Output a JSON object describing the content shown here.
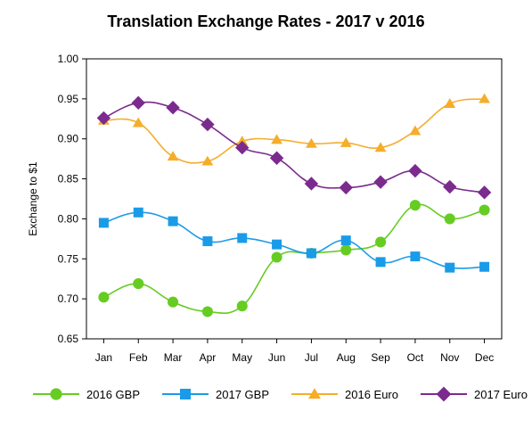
{
  "chart_data": {
    "type": "line",
    "title": "Translation Exchange Rates - 2017 v 2016",
    "xlabel": "",
    "ylabel": "Exchange to $1",
    "categories": [
      "Jan",
      "Feb",
      "Mar",
      "Apr",
      "May",
      "Jun",
      "Jul",
      "Aug",
      "Sep",
      "Oct",
      "Nov",
      "Dec"
    ],
    "ylim": [
      0.65,
      1.0
    ],
    "yticks": [
      "0.65",
      "0.70",
      "0.75",
      "0.80",
      "0.85",
      "0.90",
      "0.95",
      "1.00"
    ],
    "grid": false,
    "legend_position": "bottom",
    "series": [
      {
        "name": "2016 GBP",
        "color": "#66cc22",
        "marker": "circle",
        "values": [
          0.702,
          0.719,
          0.696,
          0.684,
          0.691,
          0.752,
          0.757,
          0.761,
          0.771,
          0.817,
          0.8,
          0.811
        ]
      },
      {
        "name": "2017 GBP",
        "color": "#1a9be8",
        "marker": "square",
        "values": [
          0.795,
          0.808,
          0.797,
          0.772,
          0.776,
          0.768,
          0.757,
          0.773,
          0.746,
          0.753,
          0.739,
          0.74
        ]
      },
      {
        "name": "2016 Euro",
        "color": "#f5ad2a",
        "marker": "triangle",
        "values": [
          0.923,
          0.92,
          0.878,
          0.872,
          0.897,
          0.899,
          0.894,
          0.895,
          0.889,
          0.91,
          0.944,
          0.95
        ]
      },
      {
        "name": "2017 Euro",
        "color": "#7b2a8e",
        "marker": "diamond",
        "values": [
          0.926,
          0.945,
          0.939,
          0.918,
          0.889,
          0.876,
          0.844,
          0.839,
          0.846,
          0.86,
          0.84,
          0.833
        ]
      }
    ]
  }
}
